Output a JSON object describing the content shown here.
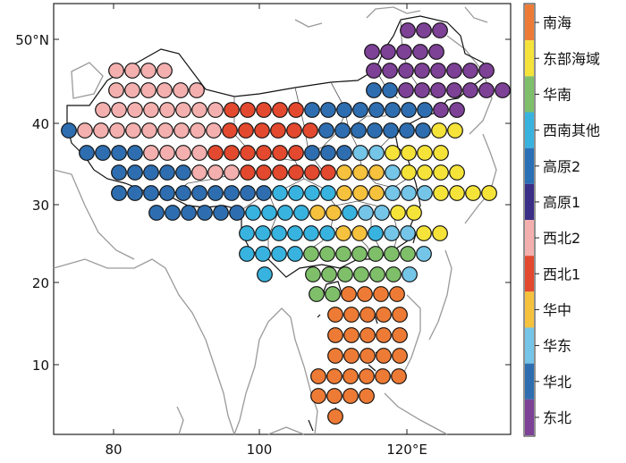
{
  "map": {
    "y_ticks": [
      "50°N",
      "40",
      "30",
      "20",
      "10"
    ],
    "x_ticks": [
      "80",
      "100",
      "120°E"
    ],
    "x_tick_values": [
      80,
      100,
      120
    ],
    "y_tick_values": [
      50,
      40,
      30,
      20,
      10
    ],
    "extent": {
      "lon_min": 72,
      "lon_max": 136,
      "lat_min": 0,
      "lat_max": 55
    }
  },
  "legend": {
    "items": [
      {
        "label": "南海",
        "color": "#ee7b35"
      },
      {
        "label": "东部海域",
        "color": "#f5e33a"
      },
      {
        "label": "华南",
        "color": "#7fbf6a"
      },
      {
        "label": "西南其他",
        "color": "#38b3df"
      },
      {
        "label": "高原2",
        "color": "#2a70b6"
      },
      {
        "label": "高原1",
        "color": "#3a2e86"
      },
      {
        "label": "西北2",
        "color": "#f3b0ae"
      },
      {
        "label": "西北1",
        "color": "#e2492e"
      },
      {
        "label": "华中",
        "color": "#f6c23d"
      },
      {
        "label": "华东",
        "color": "#74c5e7"
      },
      {
        "label": "华北",
        "color": "#2e6eb0"
      },
      {
        "label": "东北",
        "color": "#7d4196"
      }
    ]
  }
}
